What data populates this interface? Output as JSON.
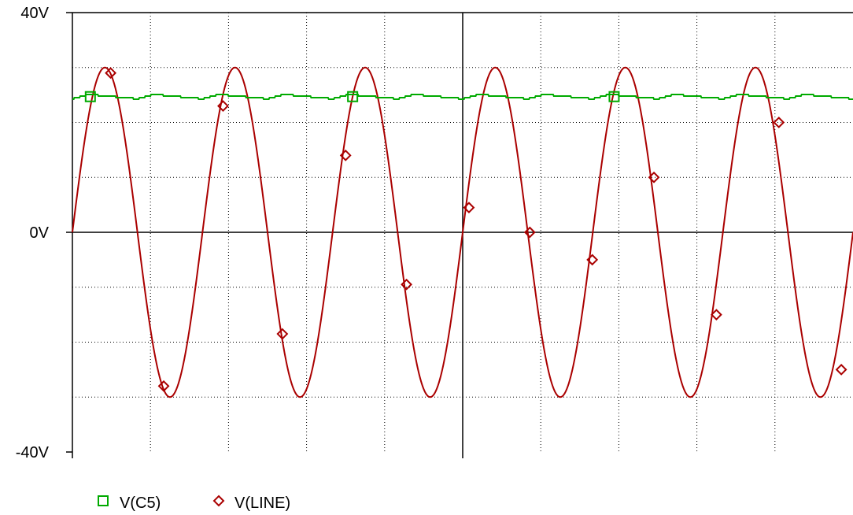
{
  "chart_data": {
    "type": "line",
    "title": "",
    "xlabel": "",
    "ylabel": "",
    "ylim": [
      -40,
      40
    ],
    "y_ticks": [
      {
        "value": 40,
        "label": "40V"
      },
      {
        "value": 0,
        "label": "0V"
      },
      {
        "value": -40,
        "label": "-40V"
      }
    ],
    "x_gridlines": 10,
    "y_gridlines": 8,
    "grid": true,
    "legend_position": "bottom-left",
    "series": [
      {
        "name": "V(C5)",
        "color": "#00aa00",
        "marker": "square",
        "description_free": true,
        "baseline": 24.7,
        "ripple": 0.8,
        "cycles": 12,
        "marker_fractions": [
          0.023,
          0.359,
          0.694
        ]
      },
      {
        "name": "V(LINE)",
        "color": "#aa0000",
        "marker": "diamond",
        "amplitude": 30,
        "cycles": 6,
        "marker_points": [
          {
            "t": 0.049,
            "v": 29
          },
          {
            "t": 0.117,
            "v": -28
          },
          {
            "t": 0.193,
            "v": 23
          },
          {
            "t": 0.269,
            "v": -18.5
          },
          {
            "t": 0.35,
            "v": 14
          },
          {
            "t": 0.428,
            "v": -9.5
          },
          {
            "t": 0.508,
            "v": 4.5
          },
          {
            "t": 0.586,
            "v": 0
          },
          {
            "t": 0.666,
            "v": -5
          },
          {
            "t": 0.745,
            "v": 10
          },
          {
            "t": 0.825,
            "v": -15
          },
          {
            "t": 0.905,
            "v": 20
          },
          {
            "t": 0.985,
            "v": -25
          }
        ]
      }
    ]
  },
  "legend": {
    "items": [
      {
        "label": "V(C5)"
      },
      {
        "label": "V(LINE)"
      }
    ]
  }
}
